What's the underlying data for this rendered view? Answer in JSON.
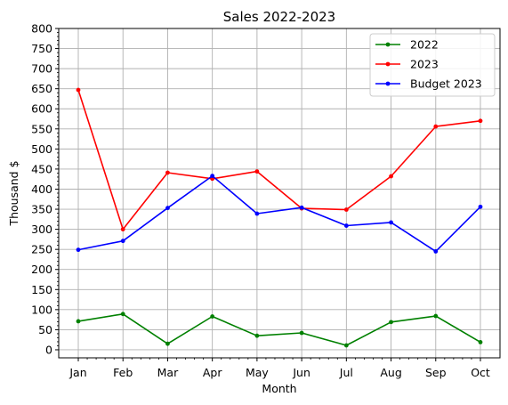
{
  "chart_data": {
    "type": "line",
    "title": "Sales 2022-2023",
    "xlabel": "Month",
    "ylabel": "Thousand $",
    "categories": [
      "Jan",
      "Feb",
      "Mar",
      "Apr",
      "May",
      "Jun",
      "Jul",
      "Aug",
      "Sep",
      "Oct"
    ],
    "y_ticks": [
      0,
      50,
      100,
      150,
      200,
      250,
      300,
      350,
      400,
      450,
      500,
      550,
      600,
      650,
      700,
      750,
      800
    ],
    "ylim": [
      -20,
      800
    ],
    "grid": true,
    "legend_position": "top-right",
    "series": [
      {
        "name": "2022",
        "color": "#008000",
        "values": [
          71,
          89,
          15,
          83,
          35,
          42,
          11,
          69,
          84,
          19
        ]
      },
      {
        "name": "2023",
        "color": "#ff0000",
        "values": [
          647,
          300,
          441,
          426,
          444,
          352,
          349,
          432,
          556,
          570
        ]
      },
      {
        "name": "Budget 2023",
        "color": "#0000ff",
        "values": [
          249,
          271,
          353,
          433,
          339,
          354,
          309,
          317,
          245,
          356
        ]
      }
    ]
  }
}
